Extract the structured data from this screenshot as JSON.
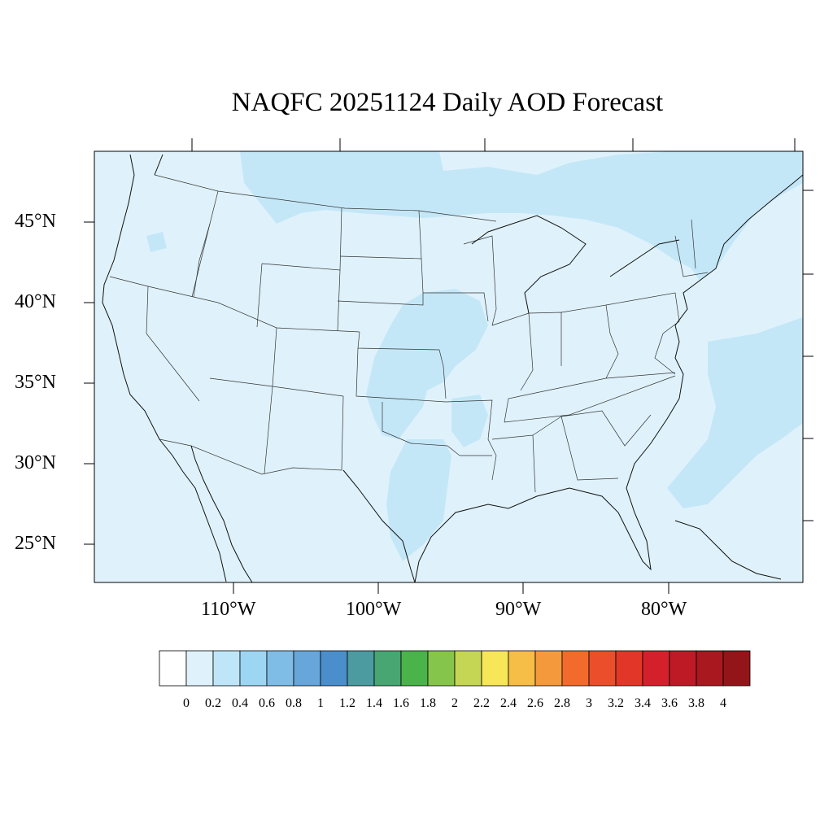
{
  "title": "NAQFC 20251124 Daily AOD Forecast",
  "lat_labels": [
    "45°N",
    "40°N",
    "35°N",
    "30°N",
    "25°N"
  ],
  "lon_labels": [
    "110°W",
    "100°W",
    "90°W",
    "80°W"
  ],
  "colorbar": {
    "labels": [
      "0",
      "0.2",
      "0.4",
      "0.6",
      "0.8",
      "1",
      "1.2",
      "1.4",
      "1.6",
      "1.8",
      "2",
      "2.2",
      "2.4",
      "2.6",
      "2.8",
      "3",
      "3.2",
      "3.4",
      "3.6",
      "3.8",
      "4"
    ],
    "colors": [
      "#ffffff",
      "#dff2fb",
      "#bfe6f8",
      "#9dd6f2",
      "#80bde6",
      "#66a6da",
      "#4a8fcb",
      "#4b9ba0",
      "#48a673",
      "#4ab34a",
      "#86c54b",
      "#c5d655",
      "#f6e658",
      "#f6bd47",
      "#f59a3c",
      "#f26a2c",
      "#eb4e2a",
      "#e23728",
      "#d4202a",
      "#bd1a25",
      "#a8181e",
      "#941519"
    ]
  },
  "map": {
    "background_color": "#dff2fb",
    "region": "Contiguous United States",
    "field": "AOD"
  }
}
